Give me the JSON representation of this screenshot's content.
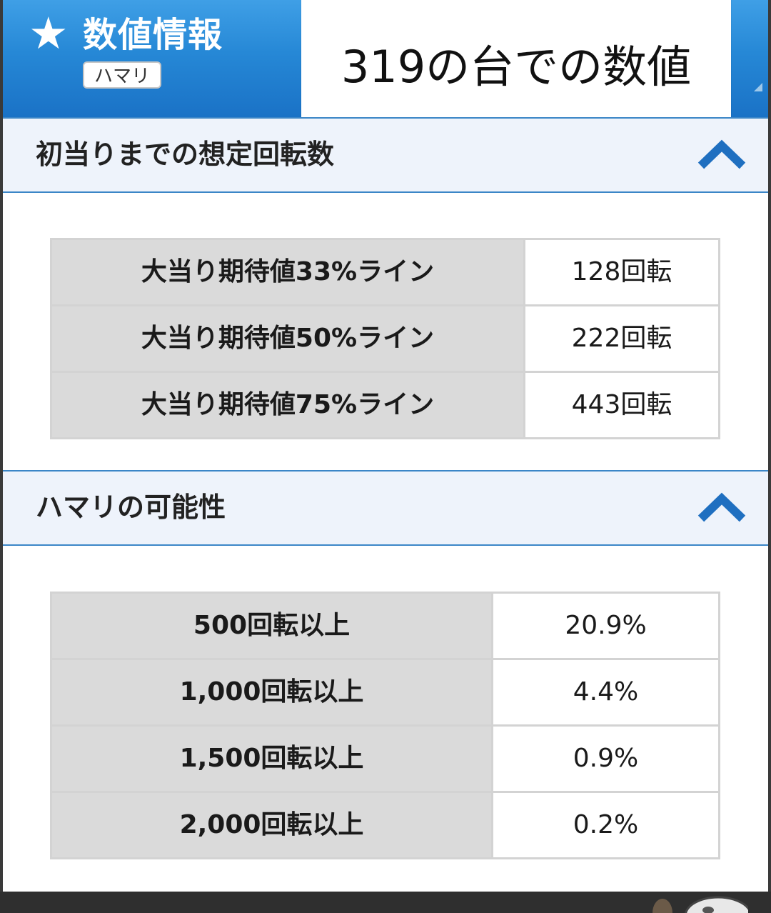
{
  "header": {
    "title": "数値情報",
    "badge": "ハマリ",
    "overlay": "319の台での数値"
  },
  "section1": {
    "title": "初当りまでの想定回転数",
    "rows": [
      {
        "label": "大当り期待値33%ライン",
        "value": "128回転"
      },
      {
        "label": "大当り期待値50%ライン",
        "value": "222回転"
      },
      {
        "label": "大当り期待値75%ライン",
        "value": "443回転"
      }
    ]
  },
  "section2": {
    "title": "ハマリの可能性",
    "rows": [
      {
        "label": "500回転以上",
        "value": "20.9%"
      },
      {
        "label": "1,000回転以上",
        "value": "4.4%"
      },
      {
        "label": "1,500回転以上",
        "value": "0.9%"
      },
      {
        "label": "2,000回転以上",
        "value": "0.2%"
      }
    ]
  },
  "icons": {
    "star": "star-icon",
    "collapse": "chevron-up-icon"
  },
  "colors": {
    "header_blue": "#2688d6",
    "section_bg": "#eef3fb",
    "accent": "#1f6fc0",
    "label_bg": "#dadada"
  }
}
